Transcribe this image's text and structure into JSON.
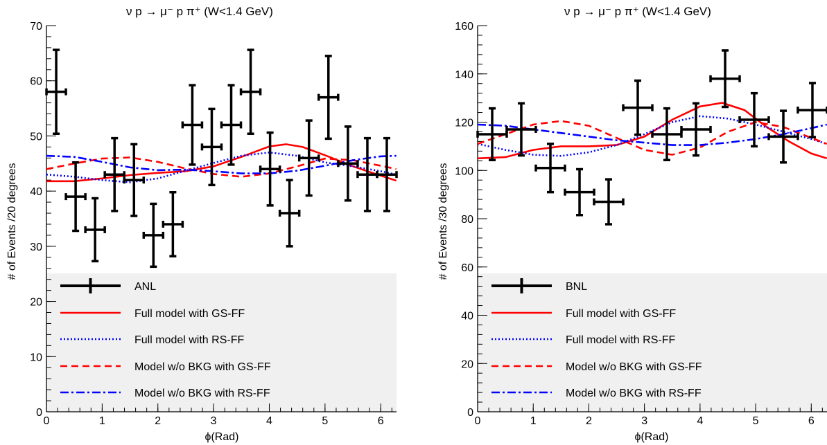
{
  "chart_data": [
    {
      "type": "scatter",
      "title": "ν p → μ⁻ p π⁺ (W<1.4 GeV)",
      "xlabel": "ϕ(Rad)",
      "ylabel": "# of Events /20 degrees",
      "xlim": [
        0,
        6.2832
      ],
      "ylim": [
        0,
        70
      ],
      "x_ticks": [
        "0",
        "1",
        "2",
        "3",
        "4",
        "5",
        "6"
      ],
      "y_ticks": [
        "0",
        "10",
        "20",
        "30",
        "40",
        "50",
        "60",
        "70"
      ],
      "legend_position": "bottom",
      "data_series": {
        "name": "ANL",
        "color": "#000000",
        "x_halfwidth": 0.1745,
        "points": [
          {
            "x": 0.175,
            "y": 58,
            "err": 7.6
          },
          {
            "x": 0.524,
            "y": 39,
            "err": 6.2
          },
          {
            "x": 0.873,
            "y": 33,
            "err": 5.7
          },
          {
            "x": 1.222,
            "y": 43,
            "err": 6.6
          },
          {
            "x": 1.571,
            "y": 42,
            "err": 6.5
          },
          {
            "x": 1.92,
            "y": 32,
            "err": 5.7
          },
          {
            "x": 2.269,
            "y": 34,
            "err": 5.8
          },
          {
            "x": 2.618,
            "y": 52,
            "err": 7.2
          },
          {
            "x": 2.967,
            "y": 48,
            "err": 6.9
          },
          {
            "x": 3.316,
            "y": 52,
            "err": 7.2
          },
          {
            "x": 3.665,
            "y": 58,
            "err": 7.6
          },
          {
            "x": 4.014,
            "y": 44,
            "err": 6.6
          },
          {
            "x": 4.363,
            "y": 36,
            "err": 6.0
          },
          {
            "x": 4.712,
            "y": 46,
            "err": 6.8
          },
          {
            "x": 5.061,
            "y": 57,
            "err": 7.5
          },
          {
            "x": 5.411,
            "y": 45,
            "err": 6.7
          },
          {
            "x": 5.76,
            "y": 43,
            "err": 6.6
          },
          {
            "x": 6.109,
            "y": 43,
            "err": 6.6
          }
        ]
      },
      "curves": [
        {
          "name": "Full model with GS-FF",
          "color": "#ff0000",
          "dash": "solid",
          "x": [
            0,
            0.5,
            1.0,
            1.5,
            2.0,
            2.5,
            3.0,
            3.5,
            4.0,
            4.3,
            4.6,
            5.0,
            5.5,
            6.0,
            6.28
          ],
          "y": [
            41.8,
            41.8,
            42.3,
            42.9,
            43.3,
            43.6,
            44.5,
            46.2,
            48.1,
            48.5,
            48.0,
            46.5,
            44.5,
            42.8,
            41.9
          ]
        },
        {
          "name": "Full model with RS-FF",
          "color": "#0000ff",
          "dash": "dotted",
          "x": [
            0,
            0.5,
            1.0,
            1.5,
            2.0,
            2.5,
            3.0,
            3.5,
            4.0,
            4.5,
            5.0,
            5.5,
            6.0,
            6.28
          ],
          "y": [
            43.0,
            42.6,
            42.0,
            41.6,
            42.3,
            43.7,
            45.1,
            46.4,
            47.0,
            46.4,
            45.2,
            44.5,
            43.6,
            43.0
          ]
        },
        {
          "name": "Model w/o BKG with GS-FF",
          "color": "#ff0000",
          "dash": "dashed",
          "x": [
            0,
            0.5,
            1.0,
            1.5,
            2.0,
            2.5,
            3.0,
            3.5,
            4.0,
            4.5,
            5.0,
            5.5,
            6.0,
            6.28
          ],
          "y": [
            44.0,
            45.0,
            45.9,
            46.1,
            45.3,
            44.1,
            43.1,
            42.6,
            43.2,
            44.5,
            45.9,
            45.6,
            44.6,
            44.0
          ]
        },
        {
          "name": "Model w/o BKG with RS-FF",
          "color": "#0000ff",
          "dash": "dashdot",
          "x": [
            0,
            0.5,
            1.0,
            1.5,
            2.0,
            2.5,
            3.0,
            3.5,
            4.0,
            4.5,
            5.0,
            5.5,
            6.0,
            6.28
          ],
          "y": [
            46.4,
            46.2,
            45.3,
            44.3,
            43.8,
            43.9,
            43.6,
            43.2,
            43.2,
            43.7,
            44.6,
            45.6,
            46.3,
            46.4
          ]
        }
      ]
    },
    {
      "type": "scatter",
      "title": "ν p → μ⁻ p π⁺ (W<1.4 GeV)",
      "xlabel": "ϕ(Rad)",
      "ylabel": "# of Events /30 degrees",
      "xlim": [
        0,
        6.2832
      ],
      "ylim": [
        0,
        160
      ],
      "x_ticks": [
        "0",
        "1",
        "2",
        "3",
        "4",
        "5",
        "6"
      ],
      "y_ticks": [
        "0",
        "20",
        "40",
        "60",
        "80",
        "100",
        "120",
        "140",
        "160"
      ],
      "legend_position": "bottom",
      "data_series": {
        "name": "BNL",
        "color": "#000000",
        "x_halfwidth": 0.2618,
        "points": [
          {
            "x": 0.262,
            "y": 115,
            "err": 10.7
          },
          {
            "x": 0.785,
            "y": 117,
            "err": 10.8
          },
          {
            "x": 1.309,
            "y": 101,
            "err": 10.0
          },
          {
            "x": 1.833,
            "y": 91,
            "err": 9.5
          },
          {
            "x": 2.356,
            "y": 87,
            "err": 9.3
          },
          {
            "x": 2.88,
            "y": 126,
            "err": 11.2
          },
          {
            "x": 3.403,
            "y": 115,
            "err": 10.7
          },
          {
            "x": 3.927,
            "y": 117,
            "err": 10.8
          },
          {
            "x": 4.451,
            "y": 138,
            "err": 11.7
          },
          {
            "x": 4.974,
            "y": 121,
            "err": 11.0
          },
          {
            "x": 5.498,
            "y": 114,
            "err": 10.7
          },
          {
            "x": 6.021,
            "y": 125,
            "err": 11.2
          }
        ]
      },
      "curves": [
        {
          "name": "Full model with GS-FF",
          "color": "#ff0000",
          "dash": "solid",
          "x": [
            0,
            0.5,
            1.0,
            1.5,
            2.0,
            2.5,
            3.0,
            3.5,
            4.0,
            4.4,
            4.8,
            5.2,
            5.6,
            6.0,
            6.28
          ],
          "y": [
            105,
            105.5,
            108.5,
            110,
            110,
            110.5,
            114,
            121,
            126.5,
            128,
            125,
            118,
            112,
            107,
            105
          ]
        },
        {
          "name": "Full model with RS-FF",
          "color": "#0000ff",
          "dash": "dotted",
          "x": [
            0,
            0.5,
            1.0,
            1.5,
            2.0,
            2.5,
            3.0,
            3.5,
            4.0,
            4.5,
            5.0,
            5.5,
            6.0,
            6.28
          ],
          "y": [
            111,
            108.5,
            106.5,
            106,
            107.5,
            110.5,
            115,
            120,
            122.5,
            121.5,
            119,
            116,
            113,
            111
          ]
        },
        {
          "name": "Model w/o BKG with GS-FF",
          "color": "#ff0000",
          "dash": "dashed",
          "x": [
            0,
            0.5,
            1.0,
            1.5,
            2.0,
            2.5,
            3.0,
            3.5,
            4.0,
            4.5,
            5.0,
            5.5,
            6.0,
            6.28
          ],
          "y": [
            111,
            115,
            119,
            120.5,
            118.5,
            113.5,
            108.5,
            106.5,
            109.5,
            116,
            120,
            118,
            113.5,
            111
          ]
        },
        {
          "name": "Model w/o BKG with RS-FF",
          "color": "#0000ff",
          "dash": "dashdot",
          "x": [
            0,
            0.5,
            1.0,
            1.5,
            2.0,
            2.5,
            3.0,
            3.5,
            4.0,
            4.5,
            5.0,
            5.5,
            6.0,
            6.28
          ],
          "y": [
            119,
            118.5,
            117,
            115.5,
            114,
            112.5,
            111.5,
            110.5,
            110.5,
            111.5,
            113,
            115,
            117.5,
            119
          ]
        }
      ]
    }
  ]
}
